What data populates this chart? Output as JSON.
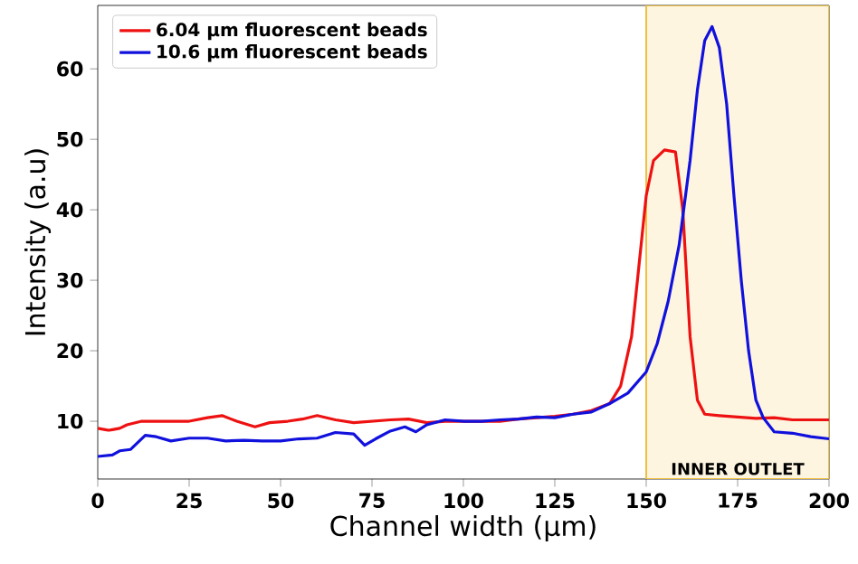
{
  "chart_data": {
    "type": "line",
    "xlabel": "Channel width (µm)",
    "ylabel": "Intensity (a.u)",
    "x": [
      0,
      3,
      6,
      8,
      12,
      20,
      25,
      30,
      34,
      38,
      43,
      47,
      52,
      56,
      60,
      65,
      70,
      75,
      80,
      85,
      90,
      95,
      100,
      105,
      110,
      115,
      120,
      125,
      130,
      135,
      140,
      143,
      146,
      148,
      150,
      152,
      155,
      158,
      160,
      162,
      164,
      166,
      170,
      175,
      180,
      185,
      190,
      195,
      200
    ],
    "series": [
      {
        "name": "6.04 µm fluorescent beads",
        "color": "#ee1111",
        "values": [
          9,
          8.7,
          9,
          9.5,
          10,
          10,
          10,
          10.5,
          10.8,
          10,
          9.2,
          9.8,
          10,
          10.3,
          10.8,
          10.2,
          9.8,
          10,
          10.2,
          10.3,
          9.8,
          10,
          10,
          10,
          10,
          10.3,
          10.5,
          10.7,
          11,
          11.5,
          12.5,
          15,
          22,
          32,
          42,
          47,
          48.5,
          48.2,
          40,
          22,
          13,
          11,
          10.8,
          10.6,
          10.4,
          10.5,
          10.2,
          10.2,
          10.2
        ]
      },
      {
        "name": "10.6 µm fluorescent beads",
        "color": "#1111dd",
        "x": [
          0,
          4,
          6,
          9,
          11,
          13,
          16,
          20,
          25,
          30,
          35,
          40,
          45,
          50,
          55,
          60,
          65,
          70,
          73,
          76,
          80,
          84,
          87,
          90,
          95,
          100,
          105,
          110,
          115,
          120,
          125,
          130,
          135,
          140,
          145,
          150,
          153,
          156,
          159,
          162,
          164,
          166,
          168,
          170,
          172,
          174,
          176,
          178,
          180,
          182,
          185,
          190,
          195,
          200
        ],
        "values": [
          5,
          5.2,
          5.8,
          6,
          7,
          8,
          7.8,
          7.2,
          7.6,
          7.6,
          7.2,
          7.3,
          7.2,
          7.2,
          7.5,
          7.6,
          8.4,
          8.2,
          6.6,
          7.5,
          8.6,
          9.2,
          8.5,
          9.5,
          10.2,
          10,
          10,
          10.2,
          10.3,
          10.6,
          10.5,
          11,
          11.3,
          12.5,
          14,
          17,
          21,
          27,
          35,
          47,
          57,
          64,
          66,
          63,
          55,
          42,
          30,
          20,
          13,
          10.5,
          8.5,
          8.3,
          7.8,
          7.5
        ]
      }
    ],
    "xlim": [
      0,
      200
    ],
    "ylim": [
      1.8,
      69
    ],
    "xticks": [
      0,
      25,
      50,
      75,
      100,
      125,
      150,
      175,
      200
    ],
    "yticks": [
      10,
      20,
      30,
      40,
      50,
      60
    ],
    "bands": [
      {
        "axis": "x",
        "from": 150,
        "to": 200,
        "label": "INNER OUTLET",
        "color": "#fdf5e0"
      }
    ],
    "legend": "top left",
    "grid": false,
    "marker": "none",
    "line_style": "solid"
  }
}
